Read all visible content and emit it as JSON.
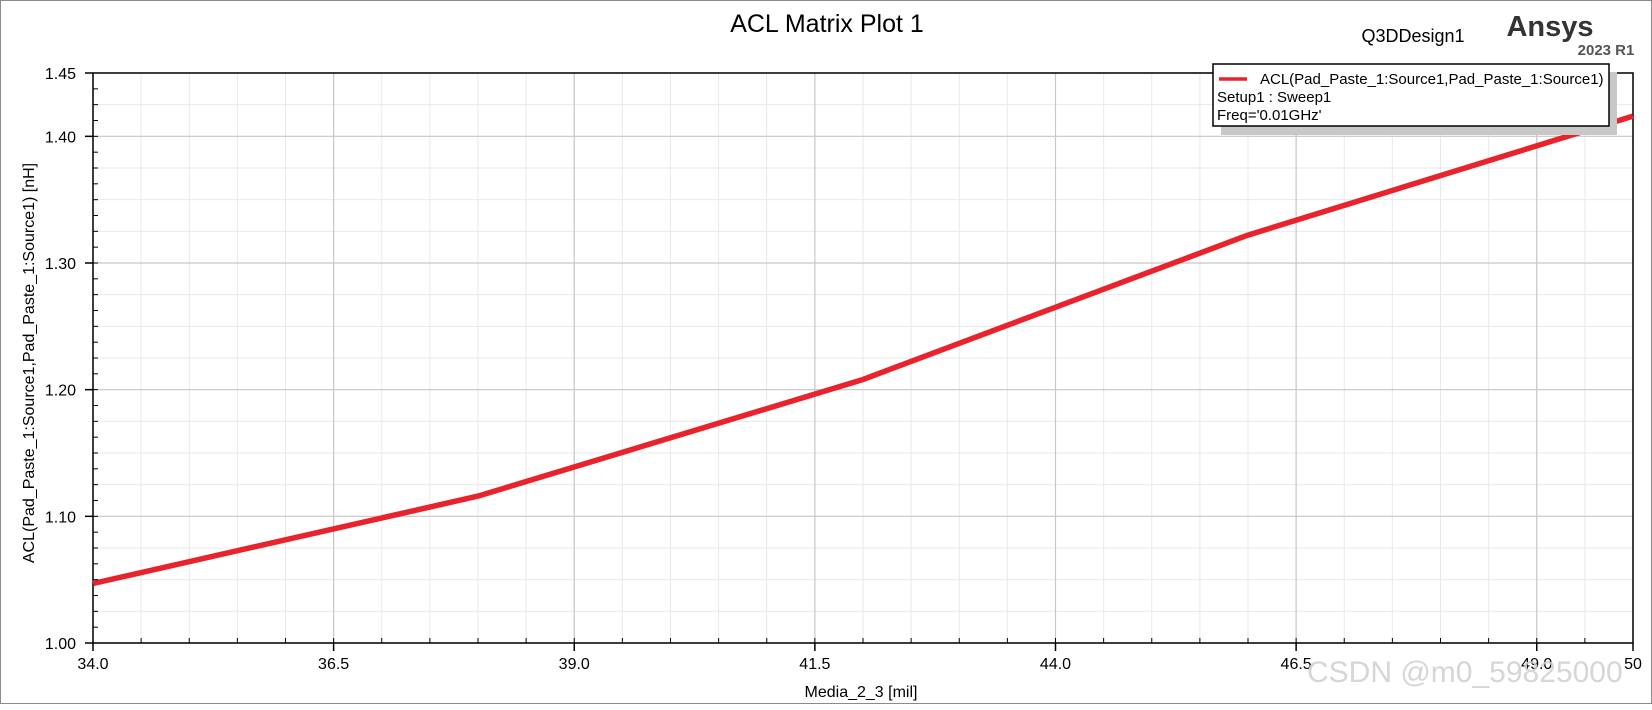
{
  "chart_data": {
    "type": "line",
    "title": "ACL Matrix Plot 1",
    "design_name": "Q3DDesign1",
    "brand": "Ansys",
    "version": "2023 R1",
    "xlabel": "Media_2_3 [mil]",
    "ylabel": "ACL(Pad_Paste_1:Source1,Pad_Paste_1:Source1) [nH]",
    "xlim": [
      34.0,
      50.0
    ],
    "ylim": [
      1.0,
      1.45
    ],
    "x_ticks": [
      34.0,
      36.5,
      39.0,
      41.5,
      44.0,
      46.5,
      49.0,
      50.0
    ],
    "x_tick_labels": [
      "34.0",
      "36.5",
      "39.0",
      "41.5",
      "44.0",
      "46.5",
      "49.0",
      "50"
    ],
    "y_ticks": [
      1.0,
      1.1,
      1.2,
      1.3,
      1.4,
      1.45
    ],
    "y_tick_labels": [
      "1.00",
      "1.10",
      "1.20",
      "1.30",
      "1.40",
      "1.45"
    ],
    "grid": true,
    "legend_position": "top-right",
    "series": [
      {
        "name": "ACL(Pad_Paste_1:Source1,Pad_Paste_1:Source1)",
        "color": "#e8232c",
        "x": [
          34.0,
          38.0,
          42.0,
          46.0,
          50.0
        ],
        "y": [
          1.047,
          1.116,
          1.208,
          1.322,
          1.416
        ]
      }
    ],
    "legend_details": [
      "Setup1 : Sweep1",
      "Freq='0.01GHz'"
    ],
    "watermark": "CSDN @m0_59825000"
  }
}
